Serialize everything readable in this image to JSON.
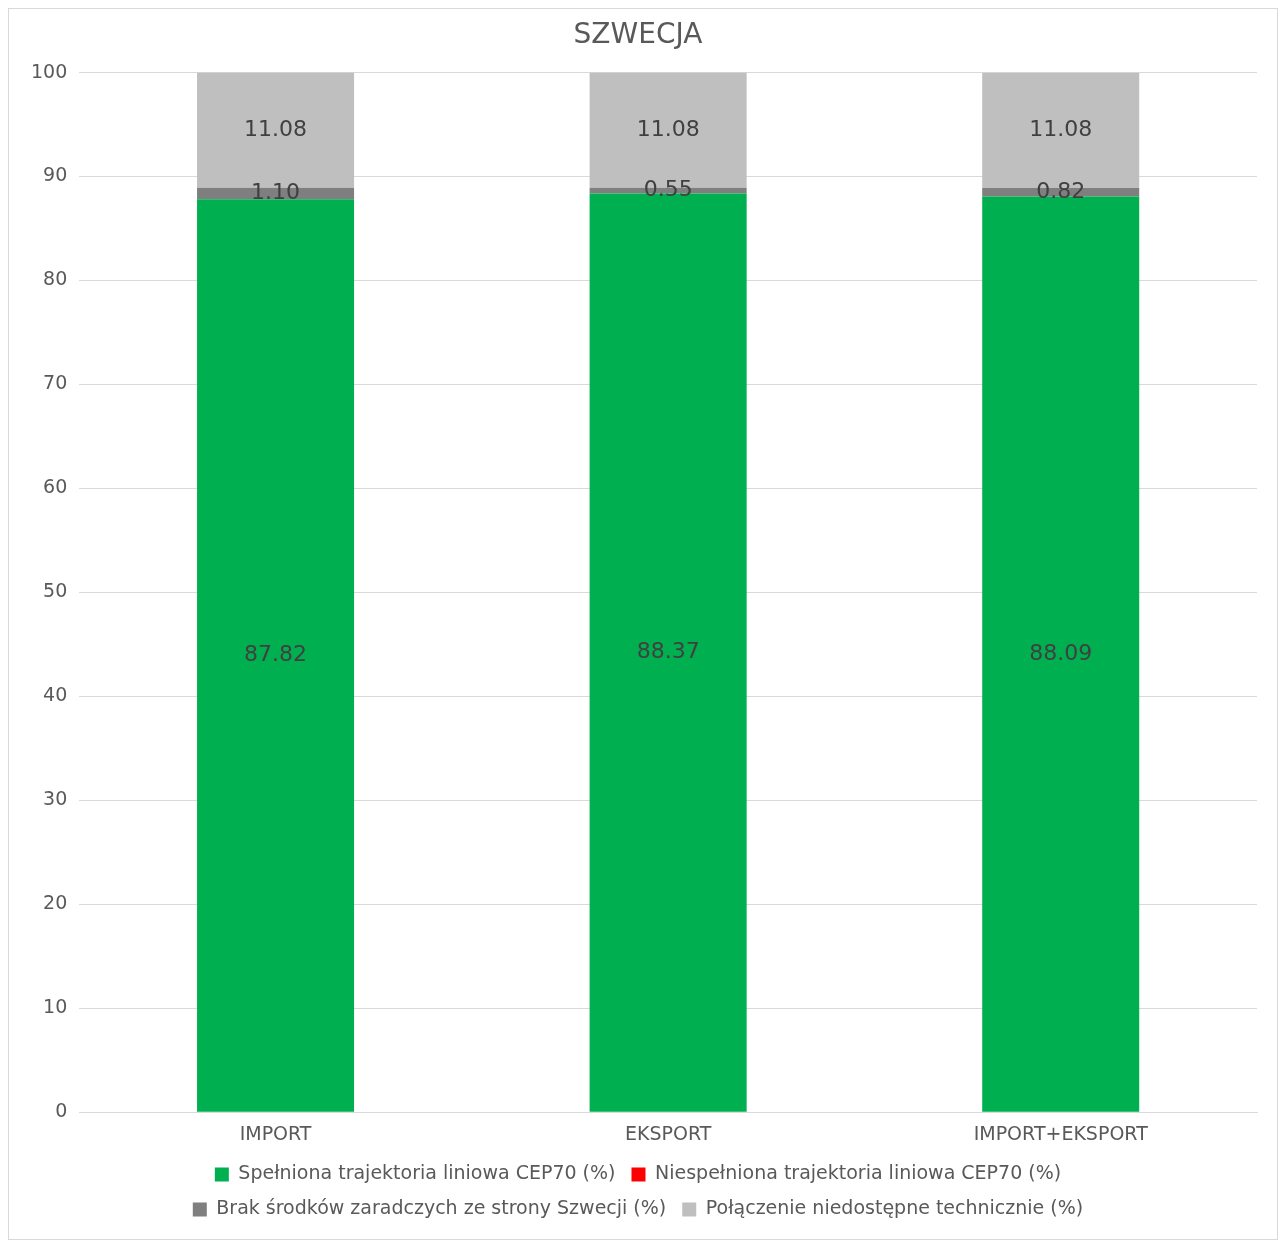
{
  "chart_data": {
    "type": "bar",
    "title": "SZWECJA",
    "categories": [
      "IMPORT",
      "EKSPORT",
      "IMPORT+EKSPORT"
    ],
    "stacked": true,
    "series": [
      {
        "name": "Spełniona trajektoria liniowa CEP70 (%)",
        "color": "#00b050",
        "values": [
          87.82,
          88.37,
          88.09
        ],
        "value_labels": [
          "87.82",
          "88.37",
          "88.09"
        ]
      },
      {
        "name": "Niespełniona trajektoria liniowa CEP70 (%)",
        "color": "#ff0000",
        "values": [
          0,
          0,
          0
        ],
        "value_labels": [
          null,
          null,
          null
        ]
      },
      {
        "name": "Brak środków zaradczych ze strony Szwecji (%)",
        "color": "#7f7f7f",
        "values": [
          1.1,
          0.55,
          0.82
        ],
        "value_labels": [
          "1.10",
          "0.55",
          "0.82"
        ]
      },
      {
        "name": "Połączenie niedostępne technicznie (%)",
        "color": "#bfbfbf",
        "values": [
          11.08,
          11.08,
          11.08
        ],
        "value_labels": [
          "11.08",
          "11.08",
          "11.08"
        ]
      }
    ],
    "ylim": [
      0,
      100
    ],
    "yticks": [
      0,
      10,
      20,
      30,
      40,
      50,
      60,
      70,
      80,
      90,
      100
    ],
    "grid": "y",
    "legend": "bottom"
  }
}
